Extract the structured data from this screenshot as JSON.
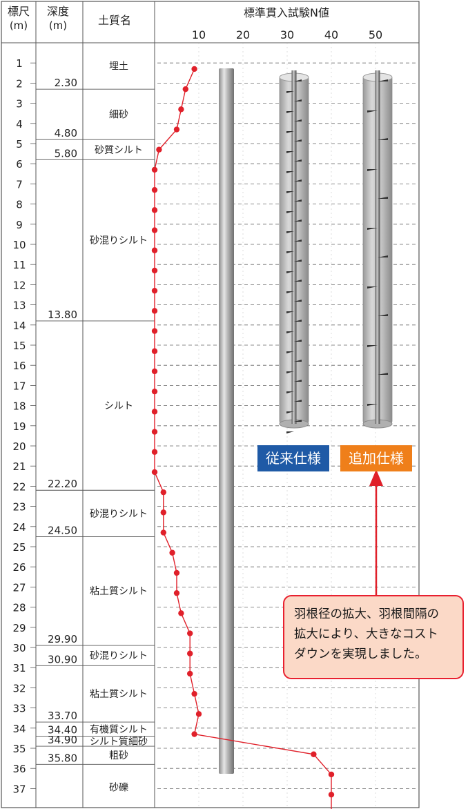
{
  "header": {
    "scale_label": "標尺\n(m)",
    "depth_label": "深度\n(m)",
    "soil_label": "土質名",
    "chart_title": "標準貫入試験N値"
  },
  "n_ticks": [
    "10",
    "20",
    "30",
    "40",
    "50"
  ],
  "scale_numbers": [
    "1",
    "2",
    "3",
    "4",
    "5",
    "6",
    "7",
    "8",
    "9",
    "10",
    "11",
    "12",
    "13",
    "14",
    "15",
    "16",
    "17",
    "18",
    "19",
    "20",
    "21",
    "22",
    "23",
    "24",
    "25",
    "26",
    "27",
    "28",
    "29",
    "30",
    "31",
    "32",
    "33",
    "34",
    "35",
    "36",
    "37"
  ],
  "layers": [
    {
      "bottom_depth": "2.30",
      "name": "埋土",
      "top": 0,
      "bottom": 2.3
    },
    {
      "bottom_depth": "4.80",
      "name": "細砂",
      "top": 2.3,
      "bottom": 4.8
    },
    {
      "bottom_depth": "5.80",
      "name": "砂質シルト",
      "top": 4.8,
      "bottom": 5.8
    },
    {
      "bottom_depth": "13.80",
      "name": "砂混りシルト",
      "top": 5.8,
      "bottom": 13.8
    },
    {
      "bottom_depth": "22.20",
      "name": "シルト",
      "top": 13.8,
      "bottom": 22.2
    },
    {
      "bottom_depth": "24.50",
      "name": "砂混りシルト",
      "top": 22.2,
      "bottom": 24.5
    },
    {
      "bottom_depth": "29.90",
      "name": "粘土質シルト",
      "top": 24.5,
      "bottom": 29.9
    },
    {
      "bottom_depth": "30.90",
      "name": "砂混りシルト",
      "top": 29.9,
      "bottom": 30.9
    },
    {
      "bottom_depth": "33.70",
      "name": "粘土質シルト",
      "top": 30.9,
      "bottom": 33.7
    },
    {
      "bottom_depth": "34.40",
      "name": "有機質シルト",
      "top": 33.7,
      "bottom": 34.4
    },
    {
      "bottom_depth": "34.90",
      "name": "シルト質細砂",
      "top": 34.4,
      "bottom": 34.9
    },
    {
      "bottom_depth": "35.80",
      "name": "粗砂",
      "top": 34.9,
      "bottom": 35.8
    },
    {
      "bottom_depth": "",
      "name": "砂礫",
      "top": 35.8,
      "bottom": 38
    }
  ],
  "chart_data": {
    "type": "line",
    "title": "標準貫入試験N値",
    "xlabel": "N値",
    "ylabel": "標尺(m)",
    "xlim": [
      0,
      50
    ],
    "ylim": [
      0,
      38
    ],
    "series": [
      {
        "points": [
          {
            "depth": 1.3,
            "n": 9
          },
          {
            "depth": 2.3,
            "n": 7
          },
          {
            "depth": 3.3,
            "n": 6
          },
          {
            "depth": 4.3,
            "n": 5
          },
          {
            "depth": 5.3,
            "n": 1
          },
          {
            "depth": 6.3,
            "n": 0
          },
          {
            "depth": 7.3,
            "n": 0
          },
          {
            "depth": 8.3,
            "n": 0
          },
          {
            "depth": 9.3,
            "n": 0
          },
          {
            "depth": 10.3,
            "n": 0
          },
          {
            "depth": 11.3,
            "n": 0
          },
          {
            "depth": 12.3,
            "n": 0
          },
          {
            "depth": 13.3,
            "n": 0
          },
          {
            "depth": 14.3,
            "n": 0
          },
          {
            "depth": 15.3,
            "n": 0
          },
          {
            "depth": 16.3,
            "n": 0
          },
          {
            "depth": 17.3,
            "n": 0
          },
          {
            "depth": 18.3,
            "n": 0
          },
          {
            "depth": 19.3,
            "n": 0
          },
          {
            "depth": 20.3,
            "n": 0
          },
          {
            "depth": 21.3,
            "n": 0
          },
          {
            "depth": 22.3,
            "n": 2
          },
          {
            "depth": 23.3,
            "n": 2
          },
          {
            "depth": 24.3,
            "n": 2
          },
          {
            "depth": 25.3,
            "n": 4
          },
          {
            "depth": 26.3,
            "n": 5
          },
          {
            "depth": 27.3,
            "n": 5
          },
          {
            "depth": 28.3,
            "n": 6
          },
          {
            "depth": 29.3,
            "n": 8
          },
          {
            "depth": 30.3,
            "n": 8
          },
          {
            "depth": 31.3,
            "n": 8
          },
          {
            "depth": 32.3,
            "n": 9
          },
          {
            "depth": 33.3,
            "n": 10
          },
          {
            "depth": 34.3,
            "n": 9
          },
          {
            "depth": 35.3,
            "n": 36
          },
          {
            "depth": 36.3,
            "n": 40
          },
          {
            "depth": 37.3,
            "n": 40
          }
        ]
      }
    ]
  },
  "labels": {
    "conventional": "従来仕様",
    "additional": "追加仕様"
  },
  "colors": {
    "data_line": "#e0202a",
    "conventional_box": "#1f5aa6",
    "additional_box": "#ef7f1a",
    "note_bg": "#fbd9c7",
    "arrow": "#e0202a"
  },
  "note": {
    "lines": [
      "羽根径の拡大、羽根間隔の",
      "拡大により、大きなコスト",
      "ダウンを実現しました。"
    ]
  }
}
